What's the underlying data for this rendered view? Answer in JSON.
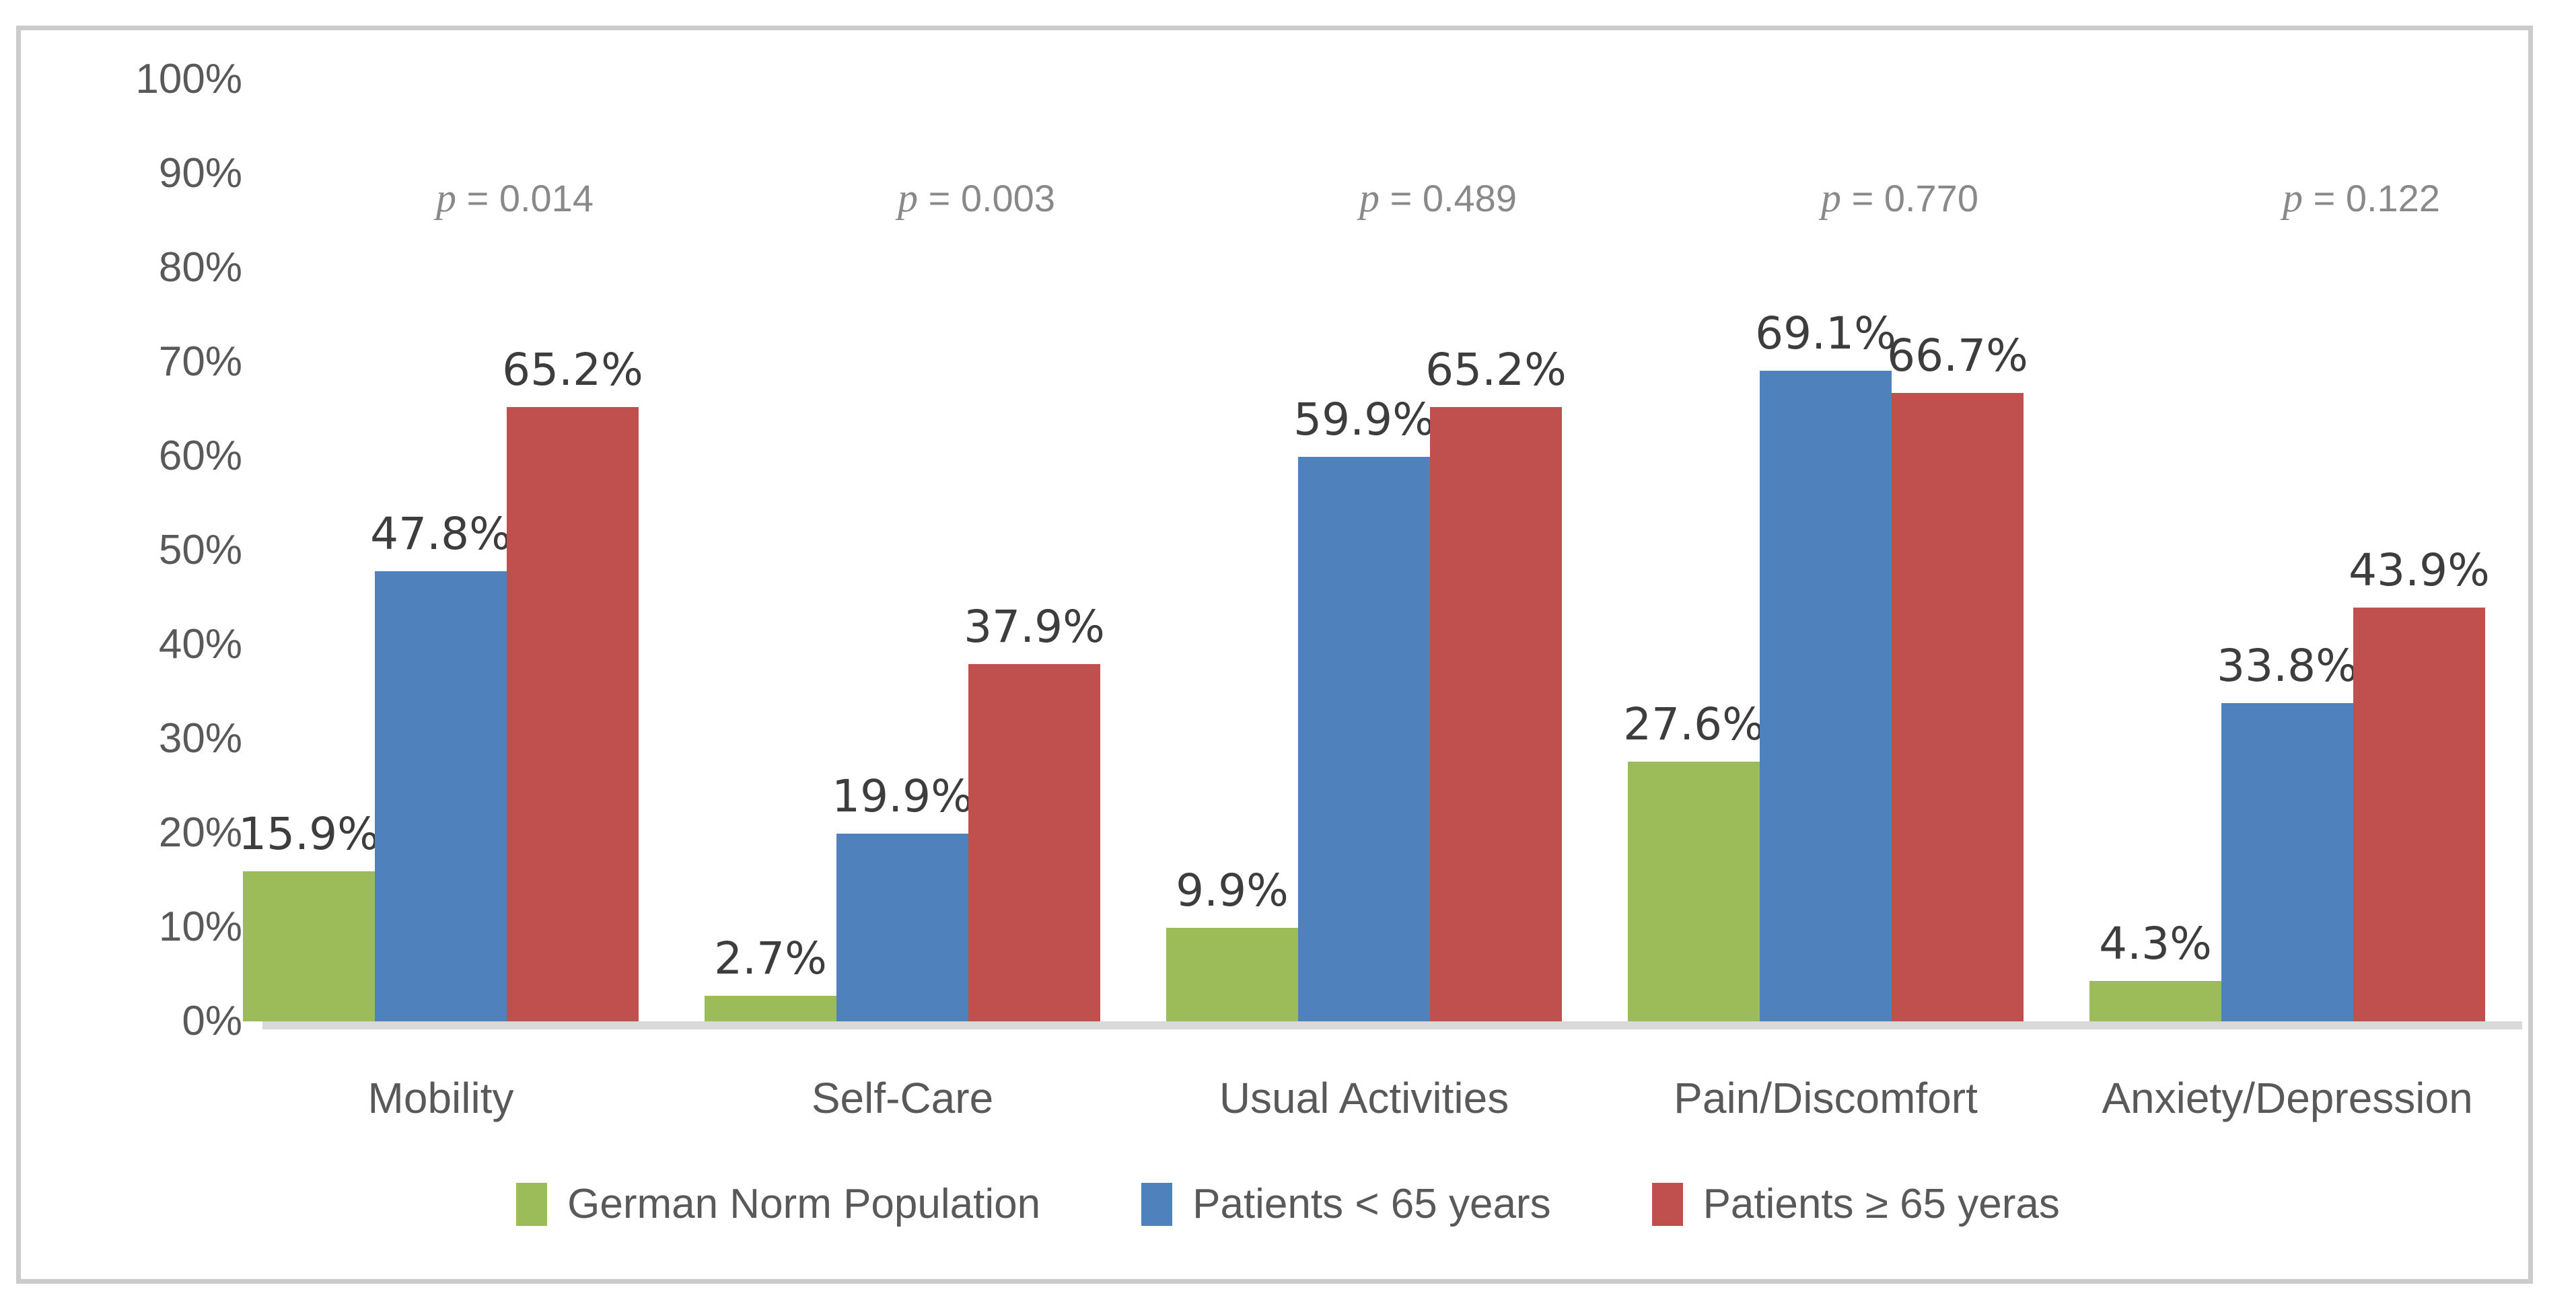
{
  "chart_data": {
    "type": "bar",
    "title": "",
    "categories": [
      "Mobility",
      "Self-Care",
      "Usual Activities",
      "Pain/Discomfort",
      "Anxiety/Depression"
    ],
    "series": [
      {
        "name": "German Norm Population",
        "color": "#9cbb59",
        "values": [
          15.9,
          2.7,
          9.9,
          27.6,
          4.3
        ]
      },
      {
        "name": "Patients < 65 years",
        "color": "#4f81bd",
        "values": [
          47.8,
          19.9,
          59.9,
          69.1,
          33.8
        ]
      },
      {
        "name": "Patients ≥ 65 yeras",
        "color": "#c0504d",
        "values": [
          65.2,
          37.9,
          65.2,
          66.7,
          43.9
        ]
      }
    ],
    "p_values": [
      "p = 0.014",
      "p = 0.003",
      "p = 0.489",
      "p = 0.770",
      "p = 0.122"
    ],
    "data_labels": [
      [
        "15.9%",
        "2.7%",
        "9.9%",
        "27.6%",
        "4.3%"
      ],
      [
        "47.8%",
        "19.9%",
        "59.9%",
        "69.1%",
        "33.8%"
      ],
      [
        "65.2%",
        "37.9%",
        "65.2%",
        "66.7%",
        "43.9%"
      ]
    ],
    "y_ticks": [
      "0%",
      "10%",
      "20%",
      "30%",
      "40%",
      "50%",
      "60%",
      "70%",
      "80%",
      "90%",
      "100%"
    ],
    "ylim": [
      0,
      100
    ],
    "grid": false,
    "legend_position": "bottom",
    "axis_baseline_color": "#d9d9d9"
  }
}
